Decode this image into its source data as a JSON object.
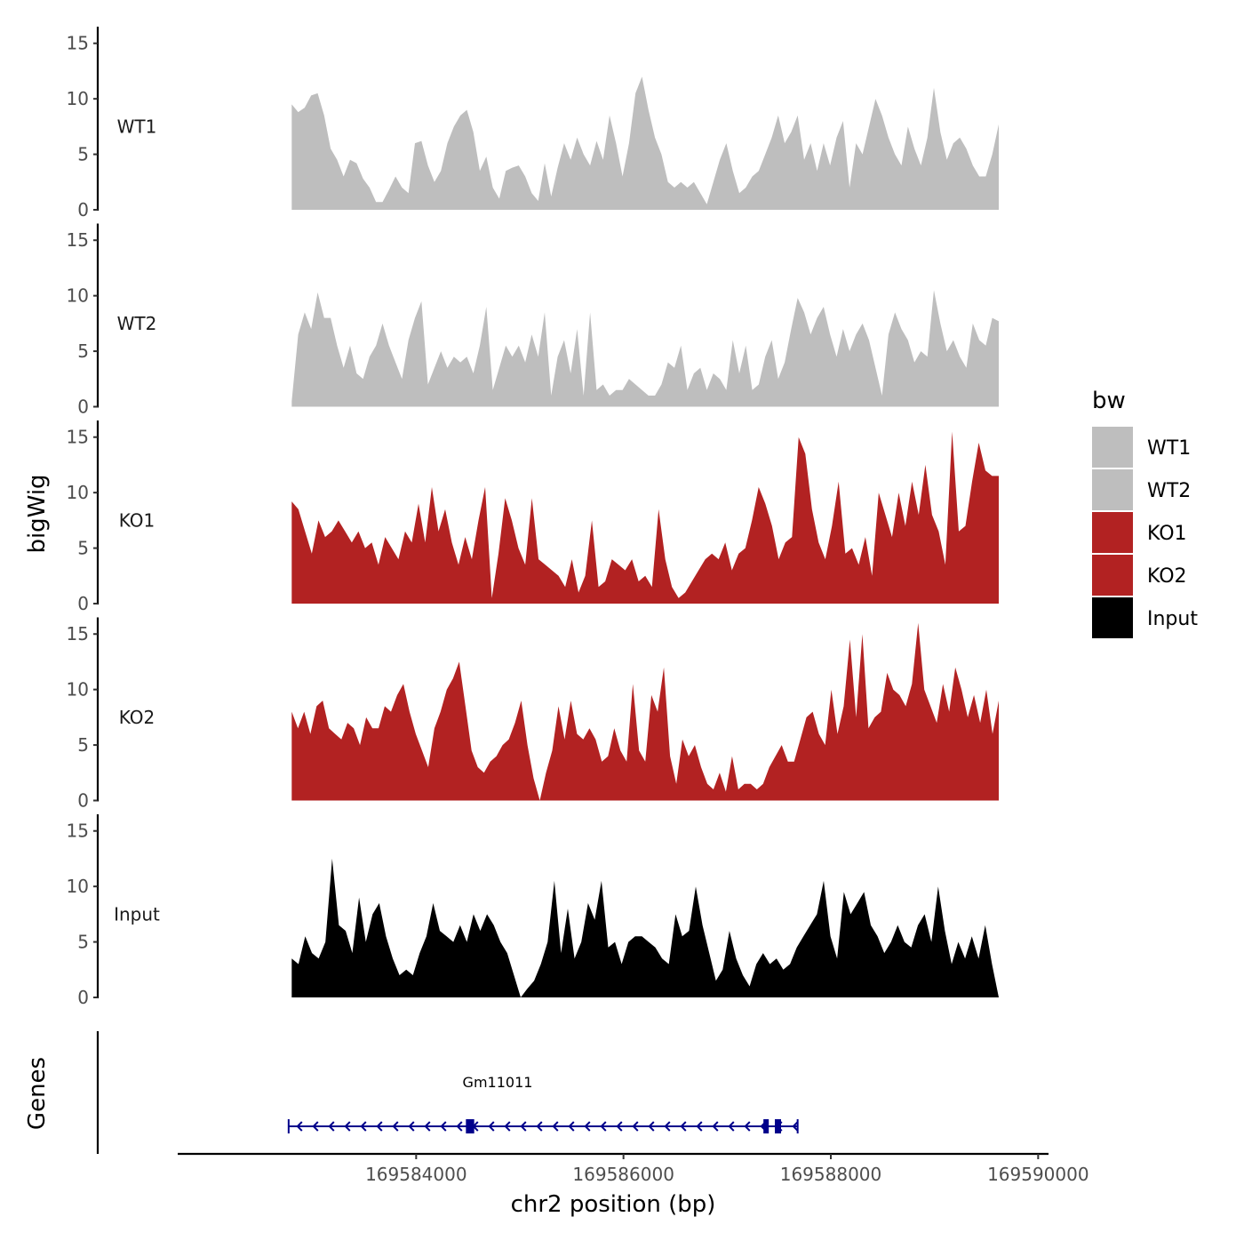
{
  "chart_data": {
    "type": "area",
    "ylabel": "bigWig",
    "xlabel": "chr2 position (bp)",
    "xlim": [
      169581700,
      169590100
    ],
    "data_x_range": [
      169582800,
      169589620
    ],
    "ylim": [
      0,
      16.5
    ],
    "yticks": [
      0,
      5,
      10,
      15
    ],
    "xticks": [
      169584000,
      169586000,
      169588000,
      169590000
    ],
    "xtick_labels": [
      "169584000",
      "169586000",
      "169588000",
      "169590000"
    ],
    "legend": {
      "title": "bw",
      "position": "right",
      "entries": [
        {
          "label": "WT1",
          "color": "#BEBEBE"
        },
        {
          "label": "WT2",
          "color": "#BEBEBE"
        },
        {
          "label": "KO1",
          "color": "#B22222"
        },
        {
          "label": "KO2",
          "color": "#B22222"
        },
        {
          "label": "Input",
          "color": "#000000"
        }
      ]
    },
    "series": [
      {
        "name": "WT1",
        "color": "#BEBEBE",
        "values": [
          9.5,
          8.8,
          9.2,
          10.3,
          10.5,
          8.5,
          5.5,
          4.5,
          3.0,
          4.5,
          4.2,
          2.8,
          2.0,
          0.7,
          0.7,
          1.8,
          3.0,
          2.0,
          1.5,
          6.0,
          6.2,
          4.0,
          2.5,
          3.5,
          6.0,
          7.5,
          8.5,
          9.0,
          7.0,
          3.5,
          4.8,
          2.0,
          1.0,
          3.5,
          3.8,
          4.0,
          3.0,
          1.5,
          0.8,
          4.2,
          1.2,
          3.8,
          6.0,
          4.5,
          6.5,
          5.0,
          4.0,
          6.2,
          4.5,
          8.5,
          6.0,
          3.0,
          6.0,
          10.5,
          12.0,
          9.0,
          6.5,
          5.0,
          2.5,
          2.0,
          2.5,
          2.0,
          2.5,
          1.5,
          0.5,
          2.5,
          4.5,
          6.0,
          3.5,
          1.5,
          2.0,
          3.0,
          3.5,
          5.0,
          6.5,
          8.5,
          6.0,
          7.0,
          8.5,
          4.5,
          6.0,
          3.5,
          6.0,
          4.0,
          6.5,
          8.0,
          2.0,
          6.0,
          5.0,
          7.5,
          10.0,
          8.5,
          6.5,
          5.0,
          4.0,
          7.5,
          5.5,
          4.0,
          6.5,
          11.0,
          7.0,
          4.5,
          6.0,
          6.5,
          5.5,
          4.0,
          3.0,
          3.0,
          5.0,
          7.7
        ]
      },
      {
        "name": "WT2",
        "color": "#BEBEBE",
        "values": [
          0.5,
          6.5,
          8.5,
          7.0,
          10.3,
          8.0,
          8.0,
          5.5,
          3.5,
          5.5,
          3.0,
          2.5,
          4.5,
          5.5,
          7.5,
          5.5,
          4.0,
          2.5,
          6.0,
          8.0,
          9.5,
          2.0,
          3.5,
          5.0,
          3.5,
          4.5,
          4.0,
          4.5,
          3.0,
          5.5,
          9.0,
          1.5,
          3.5,
          5.5,
          4.5,
          5.5,
          4.0,
          6.5,
          4.5,
          8.5,
          1.0,
          4.5,
          6.0,
          3.0,
          7.0,
          1.0,
          8.5,
          1.5,
          2.0,
          1.0,
          1.5,
          1.5,
          2.5,
          2.0,
          1.5,
          1.0,
          1.0,
          2.0,
          4.0,
          3.5,
          5.5,
          1.5,
          3.0,
          3.5,
          1.5,
          3.0,
          2.5,
          1.5,
          6.0,
          3.0,
          5.5,
          1.5,
          2.0,
          4.5,
          6.0,
          2.5,
          4.0,
          7.0,
          9.8,
          8.5,
          6.5,
          8.0,
          9.0,
          6.5,
          4.5,
          7.0,
          5.0,
          6.5,
          7.5,
          6.0,
          3.5,
          1.0,
          6.5,
          8.5,
          7.0,
          6.0,
          4.0,
          5.0,
          4.5,
          10.5,
          7.5,
          5.0,
          6.0,
          4.5,
          3.5,
          7.5,
          6.0,
          5.5,
          8.0,
          7.7
        ]
      },
      {
        "name": "KO1",
        "color": "#B22222",
        "values": [
          9.2,
          8.5,
          6.5,
          4.5,
          7.5,
          6.0,
          6.5,
          7.5,
          6.5,
          5.5,
          6.5,
          5.0,
          5.5,
          3.5,
          6.0,
          5.0,
          4.0,
          6.5,
          5.5,
          9.0,
          5.5,
          10.5,
          6.5,
          8.5,
          5.5,
          3.5,
          6.0,
          4.0,
          7.5,
          10.5,
          0.5,
          4.5,
          9.5,
          7.5,
          5.0,
          3.5,
          9.5,
          4.0,
          3.5,
          3.0,
          2.5,
          1.5,
          4.0,
          1.0,
          2.5,
          7.5,
          1.5,
          2.0,
          4.0,
          3.5,
          3.0,
          4.0,
          2.0,
          2.5,
          1.5,
          8.5,
          4.0,
          1.5,
          0.5,
          1.0,
          2.0,
          3.0,
          4.0,
          4.5,
          4.0,
          5.5,
          3.0,
          4.5,
          5.0,
          7.5,
          10.5,
          9.0,
          7.0,
          4.0,
          5.5,
          6.0,
          15.0,
          13.5,
          8.5,
          5.5,
          4.0,
          7.0,
          11.0,
          4.5,
          5.0,
          3.5,
          6.0,
          2.5,
          10.0,
          8.0,
          6.0,
          10.0,
          7.0,
          11.0,
          8.0,
          12.5,
          8.0,
          6.5,
          3.5,
          15.5,
          6.5,
          7.0,
          11.0,
          14.5,
          12.0,
          11.5,
          11.5
        ]
      },
      {
        "name": "KO2",
        "color": "#B22222",
        "values": [
          8.0,
          6.5,
          8.0,
          6.0,
          8.5,
          9.0,
          6.5,
          6.0,
          5.5,
          7.0,
          6.5,
          5.0,
          7.5,
          6.5,
          6.5,
          8.5,
          8.0,
          9.5,
          10.5,
          8.0,
          6.0,
          4.5,
          3.0,
          6.5,
          8.0,
          10.0,
          11.0,
          12.5,
          8.5,
          4.5,
          3.0,
          2.5,
          3.5,
          4.0,
          5.0,
          5.5,
          7.0,
          9.0,
          5.0,
          2.0,
          0.0,
          2.5,
          4.5,
          8.5,
          5.5,
          9.0,
          6.0,
          5.5,
          6.5,
          5.5,
          3.5,
          4.0,
          6.5,
          4.5,
          3.5,
          10.5,
          4.5,
          3.5,
          9.5,
          8.0,
          12.0,
          4.0,
          1.5,
          5.5,
          4.0,
          5.0,
          3.0,
          1.5,
          1.0,
          2.5,
          0.8,
          4.0,
          1.0,
          1.5,
          1.5,
          1.0,
          1.5,
          3.0,
          4.0,
          5.0,
          3.5,
          3.5,
          5.5,
          7.5,
          8.0,
          6.0,
          5.0,
          10.0,
          6.0,
          8.5,
          14.5,
          7.5,
          15.0,
          6.5,
          7.5,
          8.0,
          11.5,
          10.0,
          9.5,
          8.5,
          10.5,
          16.0,
          10.0,
          8.5,
          7.0,
          10.5,
          8.0,
          12.0,
          10.0,
          7.5,
          9.5,
          7.0,
          10.0,
          6.0,
          9.0
        ]
      },
      {
        "name": "Input",
        "color": "#000000",
        "values": [
          3.5,
          3.0,
          5.5,
          4.0,
          3.5,
          5.0,
          12.5,
          6.5,
          6.0,
          4.0,
          9.0,
          5.0,
          7.5,
          8.5,
          5.5,
          3.5,
          2.0,
          2.5,
          2.0,
          4.0,
          5.5,
          8.5,
          6.0,
          5.5,
          5.0,
          6.5,
          5.0,
          7.5,
          6.0,
          7.5,
          6.5,
          5.0,
          4.0,
          2.0,
          0.0,
          0.8,
          1.5,
          3.0,
          5.0,
          10.5,
          4.0,
          8.0,
          3.5,
          5.0,
          8.5,
          7.0,
          10.5,
          4.5,
          5.0,
          3.0,
          5.0,
          5.5,
          5.5,
          5.0,
          4.5,
          3.5,
          3.0,
          7.5,
          5.5,
          6.0,
          10.0,
          6.5,
          4.0,
          1.5,
          2.5,
          6.0,
          3.5,
          2.0,
          1.0,
          3.0,
          4.0,
          3.0,
          3.5,
          2.5,
          3.0,
          4.5,
          5.5,
          6.5,
          7.5,
          10.5,
          5.5,
          3.5,
          9.5,
          7.5,
          8.5,
          9.5,
          6.5,
          5.5,
          4.0,
          5.0,
          6.5,
          5.0,
          4.5,
          6.5,
          7.5,
          5.0,
          10.0,
          6.0,
          3.0,
          5.0,
          3.5,
          5.5,
          3.5,
          6.5,
          3.0,
          0.0
        ]
      }
    ],
    "genes_track": {
      "label": "Genes",
      "genes": [
        {
          "name": "Gm11011",
          "strand": "-",
          "start": 169582770,
          "end": 169587680,
          "color": "#00008B",
          "exons": [
            [
              169584480,
              169584560
            ],
            [
              169587350,
              169587400
            ],
            [
              169587460,
              169587520
            ]
          ],
          "ticks": [
            169582770,
            169587680
          ]
        }
      ]
    }
  }
}
